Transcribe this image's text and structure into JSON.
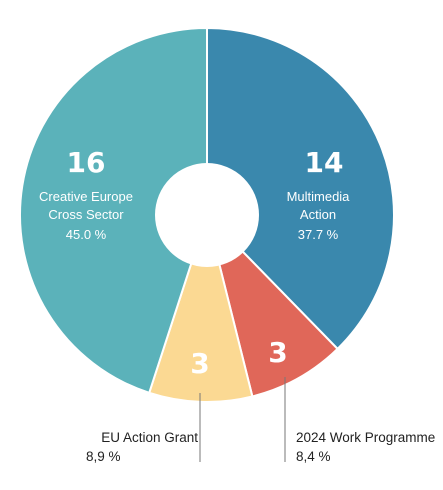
{
  "chart_data": {
    "type": "pie",
    "donut": true,
    "title": "",
    "slices": [
      {
        "count": "14",
        "name_lines": [
          "Multimedia",
          "Action"
        ],
        "percent": "37.7 %",
        "value": 14,
        "color": "#3a88ad",
        "label_color": "#ffffff"
      },
      {
        "count": "3",
        "name": "2024 Work Programme",
        "percent": "8,4 %",
        "value": 3,
        "color": "#e06759",
        "label_color": "#ffffff"
      },
      {
        "count": "3",
        "name": "EU Action Grant",
        "percent": "8,9 %",
        "value": 3,
        "color": "#fbd993",
        "label_color": "#ffffff"
      },
      {
        "count": "16",
        "name_lines": [
          "Creative Europe",
          "Cross Sector"
        ],
        "percent": "45.0 %",
        "value": 16,
        "color": "#5bb2ba",
        "label_color": "#ffffff"
      }
    ],
    "percent_shares": [
      37.7,
      8.4,
      8.9,
      45.0
    ],
    "callout_line_color": "#777777"
  }
}
